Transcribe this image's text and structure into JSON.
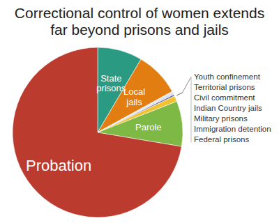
{
  "chart_data": {
    "type": "pie",
    "title": "Correctional control of women extends far beyond prisons and jails",
    "categories": [
      "State prisons",
      "Local jails",
      "Youth confinement",
      "Territorial prisons",
      "Civil commitment",
      "Indian Country jails",
      "Military prisons",
      "Immigration detention",
      "Federal prisons",
      "Parole",
      "Probation"
    ],
    "values": [
      8.5,
      8.5,
      0.3,
      0.1,
      0.1,
      0.1,
      0.05,
      0.3,
      1.1,
      8.6,
      72.35
    ],
    "colors": [
      "#2a9a82",
      "#e27d12",
      "#e3e3e3",
      "#8e7cc3",
      "#4a6fb5",
      "#6a4c9c",
      "#9fc5e8",
      "#5b5ea6",
      "#f1c232",
      "#7db944",
      "#bb3b2e"
    ]
  }
}
